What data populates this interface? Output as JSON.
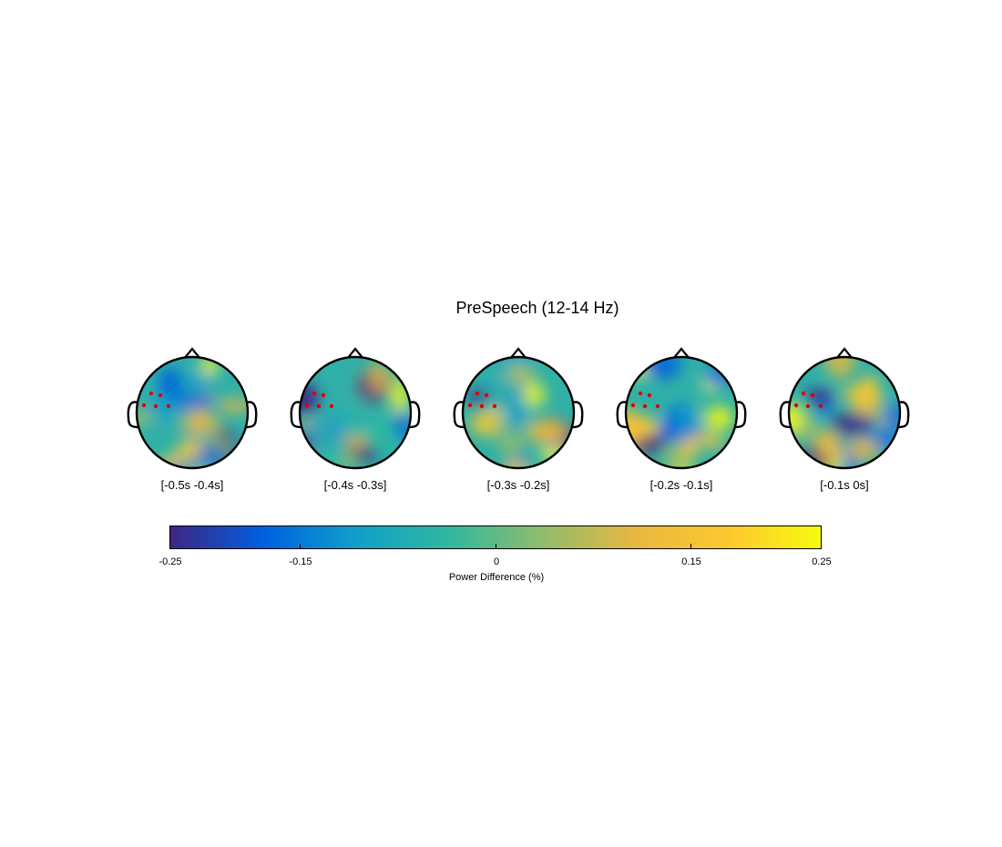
{
  "chart_data": {
    "type": "heatmap",
    "title": "PreSpeech (12-14 Hz)",
    "panels": [
      {
        "label": "[-0.5s -0.4s]",
        "seed": 11
      },
      {
        "label": "[-0.4s -0.3s]",
        "seed": 23
      },
      {
        "label": "[-0.3s -0.2s]",
        "seed": 37
      },
      {
        "label": "[-0.2s -0.1s]",
        "seed": 41
      },
      {
        "label": "[-0.1s 0s]",
        "seed": 59
      }
    ],
    "colorbar": {
      "label": "Power Difference (%)",
      "range": [
        -0.25,
        0.25
      ],
      "ticks": [
        -0.25,
        -0.15,
        0,
        0.15,
        0.25
      ],
      "tick_labels": [
        "-0.25",
        "-0.15",
        "0",
        "0.15",
        "0.25"
      ],
      "colormap": [
        "#3e2681",
        "#0060e0",
        "#10a0c8",
        "#30b8a0",
        "#90bc6c",
        "#e8b840",
        "#fcc830",
        "#f8fa0f"
      ]
    },
    "highlight_color": "#dd0000",
    "highlighted_channels": 5
  }
}
